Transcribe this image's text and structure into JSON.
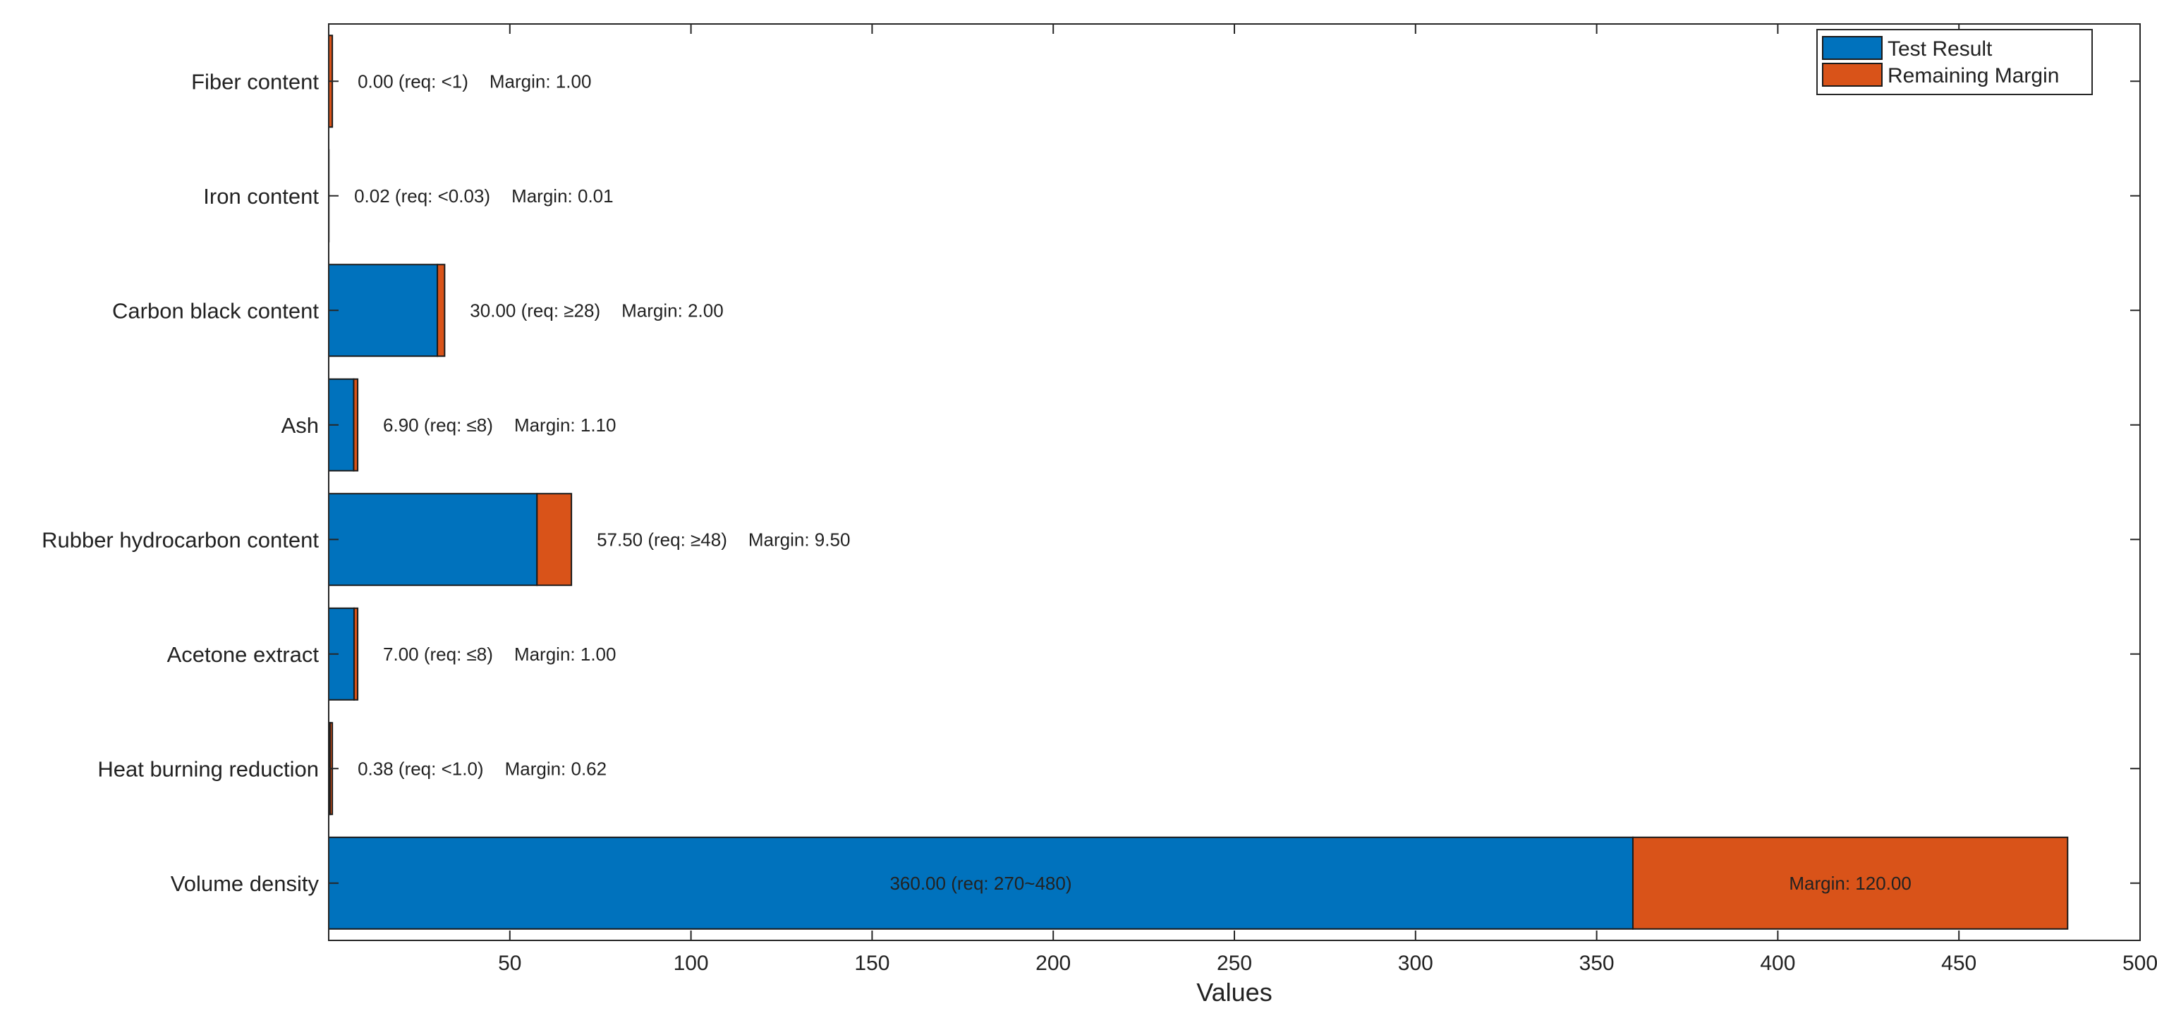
{
  "colors": {
    "test_result": "#0072BD",
    "remaining_margin": "#D95319",
    "axis": "#262626",
    "background": "#ffffff"
  },
  "chart_data": {
    "type": "bar",
    "orientation": "horizontal",
    "stacked": true,
    "title": "",
    "xlabel": "Values",
    "ylabel": "",
    "xlim": [
      0,
      500
    ],
    "x_ticks": [
      50,
      100,
      150,
      200,
      250,
      300,
      350,
      400,
      450,
      500
    ],
    "grid": false,
    "legend_position": "top-right",
    "categories": [
      "Volume density",
      "Heat burning reduction",
      "Acetone extract",
      "Rubber hydrocarbon content",
      "Ash",
      "Carbon black content",
      "Iron content",
      "Fiber content"
    ],
    "series": [
      {
        "name": "Test Result",
        "values": [
          360.0,
          0.38,
          7.0,
          57.5,
          6.9,
          30.0,
          0.02,
          0.0
        ]
      },
      {
        "name": "Remaining Margin",
        "values": [
          120.0,
          0.62,
          1.0,
          9.5,
          1.1,
          2.0,
          0.01,
          1.0
        ]
      }
    ],
    "result_labels": [
      "360.00 (req: 270~480)",
      "0.38 (req: <1.0)",
      "7.00 (req: ≤8)",
      "57.50 (req: ≥48)",
      "6.90 (req: ≤8)",
      "30.00 (req: ≥28)",
      "0.02 (req: <0.03)",
      "0.00 (req: <1)"
    ],
    "margin_labels": [
      "Margin: 120.00",
      "Margin: 0.62",
      "Margin: 1.00",
      "Margin: 9.50",
      "Margin: 1.10",
      "Margin: 2.00",
      "Margin: 0.01",
      "Margin: 1.00"
    ]
  }
}
